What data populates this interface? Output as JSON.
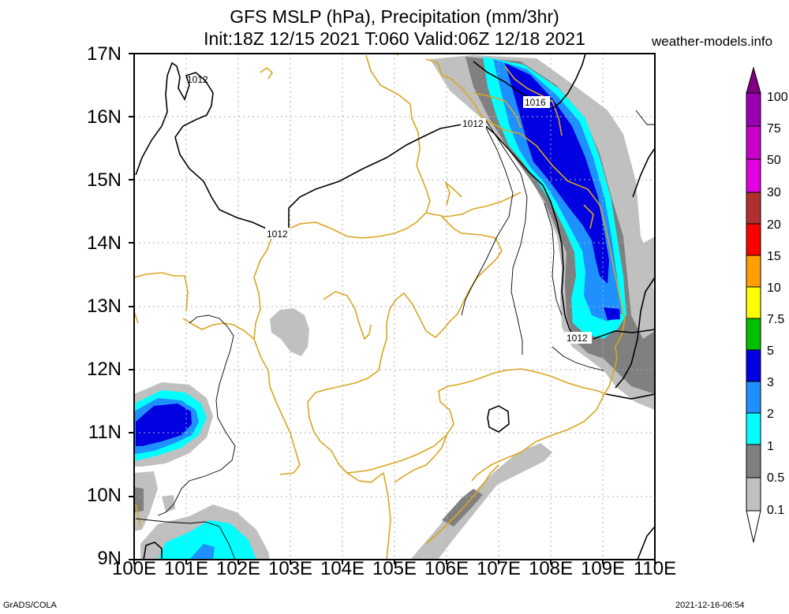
{
  "title": {
    "line1": "GFS MSLP (hPa), Precipitation (mm/3hr)",
    "line2": "Init:18Z 12/15 2021 T:060 Valid:06Z 12/18 2021"
  },
  "credit": "weather-models.info",
  "footer": {
    "left": "GrADS/COLA",
    "right": "2021-12-16-06:54"
  },
  "axes": {
    "latitudes": [
      "17N",
      "16N",
      "15N",
      "14N",
      "13N",
      "12N",
      "11N",
      "10N",
      "9N"
    ],
    "longitudes": [
      "100E",
      "101E",
      "102E",
      "103E",
      "104E",
      "105E",
      "106E",
      "107E",
      "108E",
      "109E",
      "110E"
    ]
  },
  "isobar_labels": [
    "1012",
    "1012",
    "1012",
    "1016",
    "1012"
  ],
  "colorbar": {
    "levels": [
      "100",
      "75",
      "50",
      "30",
      "20",
      "15",
      "10",
      "7.5",
      "5",
      "3",
      "2",
      "1",
      "0.5",
      "0.1"
    ],
    "colors": [
      "#800080",
      "#9a00b0",
      "#e000e0",
      "#b03030",
      "#ff0000",
      "#ff6000",
      "#ffa000",
      "#ffff00",
      "#00c000",
      "#0000e0",
      "#1e90ff",
      "#00ffff",
      "#808080",
      "#c0c0c0"
    ]
  },
  "colors": {
    "coast": "#daa520",
    "light_precip": "#c0c0c0",
    "medium_precip": "#808080",
    "cyan_precip": "#00ffff",
    "blue_precip": "#1e90ff",
    "dark_blue_precip": "#0000e0"
  }
}
